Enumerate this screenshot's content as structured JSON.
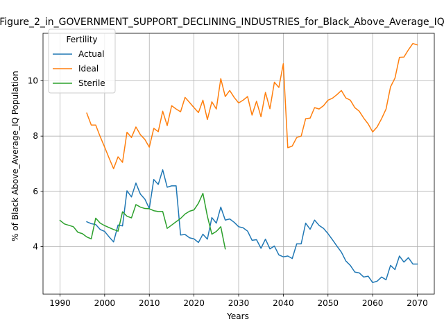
{
  "chart_data": {
    "type": "line",
    "title": "Figure_2_in_GOVERNMENT_SUPPORT_DECLINING_INDUSTRIES_for_Black_Above_Average_IQ",
    "xlabel": "Years",
    "ylabel": "% of Black Above_Average_IQ Population",
    "xlim": [
      1986.2,
      2073.8
    ],
    "ylim": [
      2.28,
      11.72
    ],
    "xticks": [
      1990,
      2000,
      2010,
      2020,
      2030,
      2040,
      2050,
      2060,
      2070
    ],
    "yticks": [
      4,
      6,
      8,
      10
    ],
    "grid": true,
    "legend": {
      "title": "Fertility",
      "placement": "top-left"
    },
    "series": [
      {
        "name": "Actual",
        "color": "#1f77b4",
        "x": [
          1996,
          1997,
          1998,
          1999,
          2000,
          2001,
          2002,
          2003,
          2004,
          2005,
          2006,
          2007,
          2008,
          2009,
          2010,
          2011,
          2012,
          2013,
          2014,
          2015,
          2016,
          2017,
          2018,
          2019,
          2020,
          2021,
          2022,
          2023,
          2024,
          2025,
          2026,
          2027,
          2028,
          2029,
          2030,
          2031,
          2032,
          2033,
          2034,
          2035,
          2036,
          2037,
          2038,
          2039,
          2040,
          2041,
          2042,
          2043,
          2044,
          2045,
          2046,
          2047,
          2048,
          2049,
          2050,
          2051,
          2052,
          2053,
          2054,
          2055,
          2056,
          2057,
          2058,
          2059,
          2060,
          2061,
          2062,
          2063,
          2064,
          2065,
          2066,
          2067,
          2068,
          2069,
          2070
        ],
        "y": [
          4.9,
          4.83,
          4.8,
          4.62,
          4.55,
          4.35,
          4.17,
          4.78,
          4.75,
          6.02,
          5.8,
          6.3,
          5.9,
          5.72,
          5.38,
          6.43,
          6.25,
          6.78,
          6.15,
          6.2,
          6.2,
          4.42,
          4.44,
          4.32,
          4.28,
          4.15,
          4.45,
          4.27,
          5.05,
          4.85,
          5.43,
          4.96,
          5.0,
          4.88,
          4.72,
          4.68,
          4.56,
          4.23,
          4.25,
          3.94,
          4.27,
          3.92,
          4.02,
          3.7,
          3.63,
          3.66,
          3.57,
          4.1,
          4.1,
          4.85,
          4.63,
          4.96,
          4.77,
          4.66,
          4.47,
          4.25,
          4.02,
          3.8,
          3.48,
          3.32,
          3.08,
          3.05,
          2.9,
          2.93,
          2.7,
          2.75,
          2.9,
          2.8,
          3.32,
          3.17,
          3.66,
          3.44,
          3.6,
          3.37,
          3.37
        ]
      },
      {
        "name": "Ideal",
        "color": "#ff7f0e",
        "x": [
          1996,
          1997,
          1998,
          1999,
          2000,
          2001,
          2002,
          2003,
          2004,
          2005,
          2006,
          2007,
          2008,
          2009,
          2010,
          2011,
          2012,
          2013,
          2014,
          2015,
          2016,
          2017,
          2018,
          2019,
          2020,
          2021,
          2022,
          2023,
          2024,
          2025,
          2026,
          2027,
          2028,
          2029,
          2030,
          2031,
          2032,
          2033,
          2034,
          2035,
          2036,
          2037,
          2038,
          2039,
          2040,
          2041,
          2042,
          2043,
          2044,
          2045,
          2046,
          2047,
          2048,
          2049,
          2050,
          2051,
          2052,
          2053,
          2054,
          2055,
          2056,
          2057,
          2058,
          2059,
          2060,
          2061,
          2062,
          2063,
          2064,
          2065,
          2066,
          2067,
          2068,
          2069,
          2070
        ],
        "y": [
          8.83,
          8.4,
          8.4,
          7.98,
          7.6,
          7.2,
          6.82,
          7.25,
          7.05,
          8.14,
          7.95,
          8.33,
          8.05,
          7.88,
          7.6,
          8.28,
          8.16,
          8.9,
          8.38,
          9.1,
          8.98,
          8.88,
          9.4,
          9.22,
          9.03,
          8.85,
          9.3,
          8.6,
          9.24,
          8.98,
          10.08,
          9.43,
          9.65,
          9.4,
          9.2,
          9.3,
          9.43,
          8.76,
          9.26,
          8.7,
          9.58,
          8.99,
          9.95,
          9.76,
          10.62,
          7.58,
          7.64,
          7.95,
          8.0,
          8.63,
          8.65,
          9.03,
          8.98,
          9.1,
          9.3,
          9.37,
          9.5,
          9.65,
          9.38,
          9.3,
          9.03,
          8.9,
          8.65,
          8.44,
          8.15,
          8.33,
          8.63,
          8.98,
          9.78,
          10.1,
          10.85,
          10.86,
          11.12,
          11.35,
          11.3
        ]
      },
      {
        "name": "Sterile",
        "color": "#2ca02c",
        "x": [
          1990,
          1991,
          1992,
          1993,
          1994,
          1995,
          1996,
          1997,
          1998,
          1999,
          2000,
          2001,
          2002,
          2003,
          2004,
          2005,
          2006,
          2007,
          2008,
          2009,
          2010,
          2011,
          2012,
          2013,
          2014,
          2015,
          2016,
          2017,
          2018,
          2019,
          2020,
          2021,
          2022,
          2023,
          2024,
          2025,
          2026,
          2027
        ],
        "y": [
          4.95,
          4.82,
          4.77,
          4.72,
          4.52,
          4.47,
          4.35,
          4.28,
          5.03,
          4.85,
          4.76,
          4.69,
          4.62,
          4.56,
          5.26,
          5.1,
          5.04,
          5.52,
          5.43,
          5.38,
          5.37,
          5.3,
          5.27,
          5.27,
          4.66,
          4.78,
          4.9,
          5.02,
          5.18,
          5.28,
          5.33,
          5.57,
          5.93,
          5.1,
          4.45,
          4.55,
          4.72,
          3.92
        ]
      }
    ]
  }
}
